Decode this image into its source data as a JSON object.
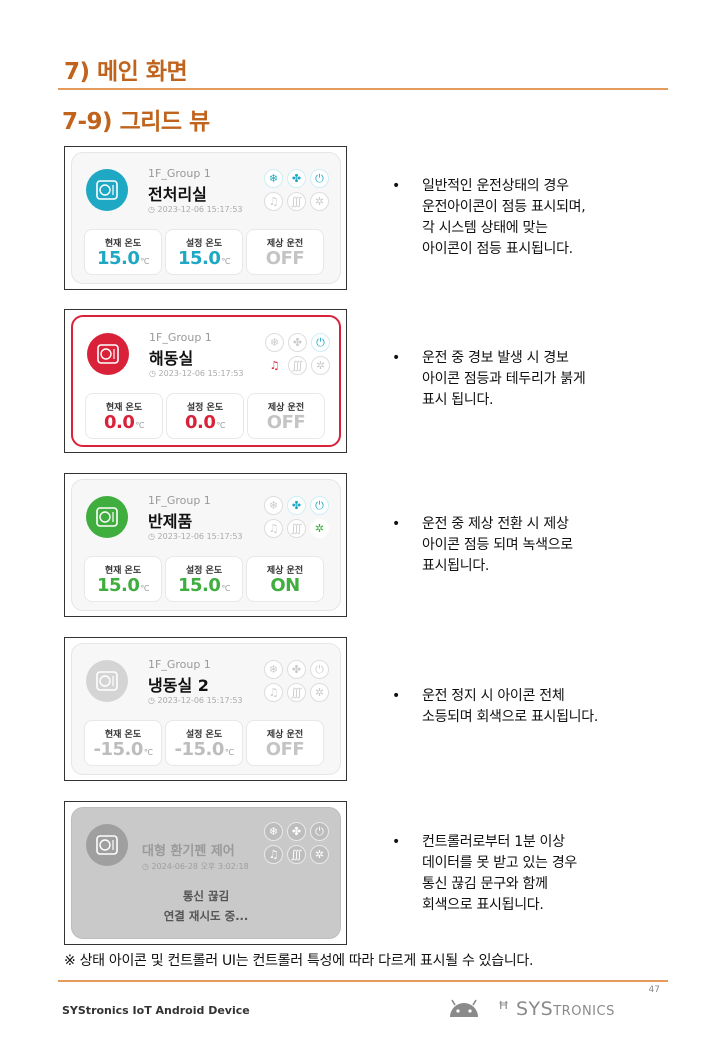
{
  "heading": "7) 메인 화면",
  "subheading": "7-9)  그리드 뷰",
  "colors": {
    "accent": "#c0631c",
    "teal": "#1ea8c4",
    "red": "#d9223a",
    "green": "#3fae3f",
    "gray": "#c4c4c4"
  },
  "cards": [
    {
      "group": "1F_Group 1",
      "name": "전처리실",
      "timestamp": "2023-12-06 15:17:53",
      "stats": [
        {
          "label": "현재 온도",
          "value": "15.0",
          "unit": "°C"
        },
        {
          "label": "설정 온도",
          "value": "15.0",
          "unit": "°C"
        },
        {
          "label": "제상 운전",
          "value": "OFF",
          "unit": ""
        }
      ],
      "description": "일반적인 운전상태의 경우\n운전아이콘이 점등 표시되며,\n각 시스템 상태에 맞는\n아이콘이 점등 표시됩니다."
    },
    {
      "group": "1F_Group 1",
      "name": "해동실",
      "timestamp": "2023-12-06 15:17:53",
      "stats": [
        {
          "label": "현재 온도",
          "value": "0.0",
          "unit": "°C"
        },
        {
          "label": "설정 온도",
          "value": "0.0",
          "unit": "°C"
        },
        {
          "label": "제상 운전",
          "value": "OFF",
          "unit": ""
        }
      ],
      "description": "운전 중 경보 발생 시 경보\n아이콘 점등과 테두리가 붉게\n표시 됩니다."
    },
    {
      "group": "1F_Group 1",
      "name": "반제품",
      "timestamp": "2023-12-06 15:17:53",
      "stats": [
        {
          "label": "현재 온도",
          "value": "15.0",
          "unit": "°C"
        },
        {
          "label": "설정 온도",
          "value": "15.0",
          "unit": "°C"
        },
        {
          "label": "제상 운전",
          "value": "ON",
          "unit": ""
        }
      ],
      "description": "운전 중 제상 전환 시 제상\n아이콘 점등 되며 녹색으로\n표시됩니다."
    },
    {
      "group": "1F_Group 1",
      "name": "냉동실 2",
      "timestamp": "2023-12-06 15:17:53",
      "stats": [
        {
          "label": "현재 온도",
          "value": "-15.0",
          "unit": "°C"
        },
        {
          "label": "설정 온도",
          "value": "-15.0",
          "unit": "°C"
        },
        {
          "label": "제상 운전",
          "value": "OFF",
          "unit": ""
        }
      ],
      "description": "운전 정지 시 아이콘 전체\n소등되며 회색으로 표시됩니다."
    },
    {
      "name": "대형 환기펜 제어",
      "timestamp": "2024-06-28 오후 3:02:18",
      "status_line1": "통신 끊김",
      "status_line2": "연결 재시도 중...",
      "description": "컨트롤러로부터 1분 이상\n데이터를 못 받고 있는 경우\n통신 끊김 문구와 함께\n회색으로 표시됩니다."
    }
  ],
  "bullet": "•",
  "footnote": "※ 상태 아이콘 및 컨트롤러 UI는 컨트롤러 특성에 따라 다르게 표시될 수 있습니다.",
  "page_number": "47",
  "footer_left": "SYStronics IoT Android Device",
  "footer_logo": {
    "big": "SYS",
    "small": "TRONICS"
  },
  "icons": [
    "snowflake-icon",
    "fan-icon",
    "power-icon",
    "bell-icon",
    "heater-icon",
    "defrost-icon",
    "clock-icon",
    "android-icon"
  ]
}
